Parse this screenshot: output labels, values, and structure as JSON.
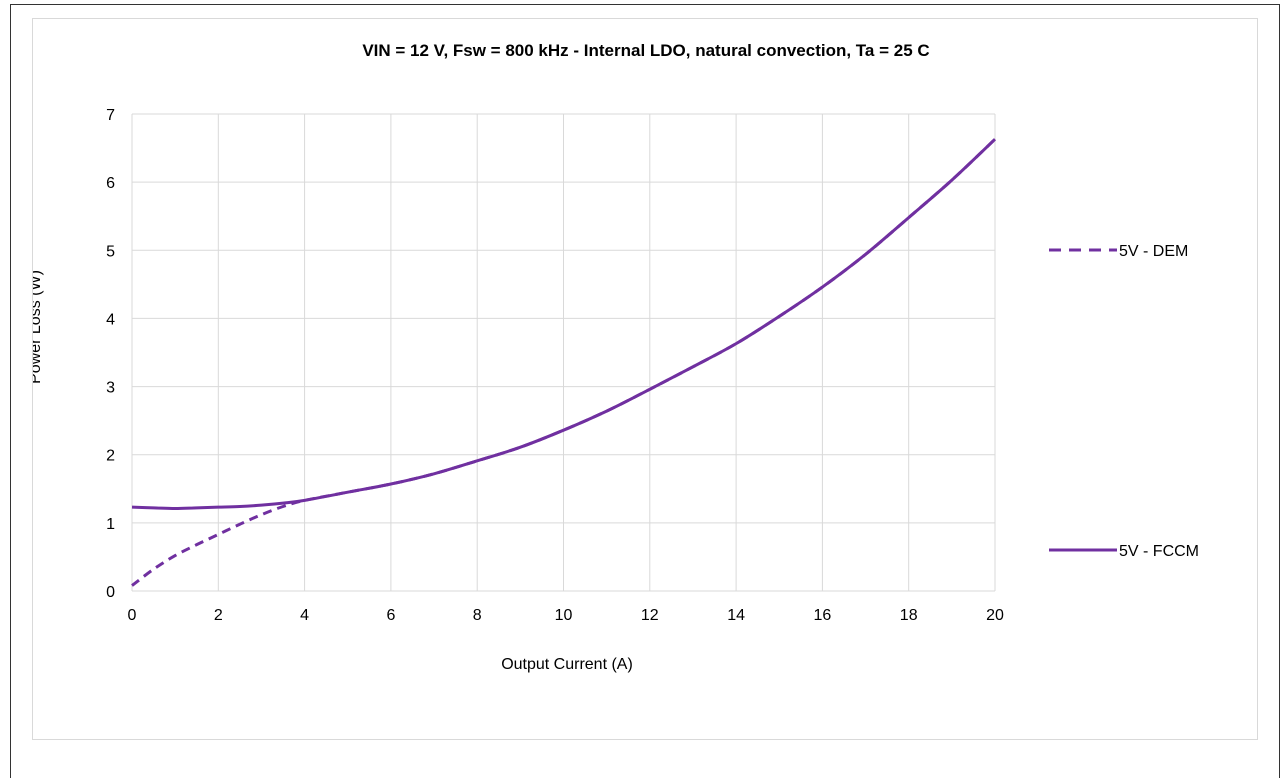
{
  "chart_data": {
    "type": "line",
    "title": "VIN = 12 V, Fsw = 800 kHz - Internal LDO, natural convection, Ta = 25 C",
    "xlabel": "Output Current (A)",
    "ylabel": "Power Loss (W)",
    "xlim": [
      0,
      20
    ],
    "ylim": [
      0,
      7
    ],
    "xticks": [
      0,
      2,
      4,
      6,
      8,
      10,
      12,
      14,
      16,
      18,
      20
    ],
    "yticks": [
      0,
      1,
      2,
      3,
      4,
      5,
      6,
      7
    ],
    "grid": "vertical and horizontal",
    "legend_position": "right",
    "series": [
      {
        "name": "5V - DEM",
        "style": "dashed",
        "color": "#7030a0",
        "x": [
          0,
          0.5,
          1,
          1.5,
          2,
          2.5,
          3,
          3.5,
          4,
          5,
          6,
          7,
          8,
          9,
          10,
          11,
          12,
          13,
          14,
          15,
          16,
          17,
          18,
          19,
          20
        ],
        "y": [
          0.08,
          0.32,
          0.52,
          0.68,
          0.83,
          0.98,
          1.12,
          1.24,
          1.33,
          1.45,
          1.57,
          1.72,
          1.91,
          2.11,
          2.36,
          2.64,
          2.96,
          3.29,
          3.63,
          4.03,
          4.46,
          4.94,
          5.48,
          6.03,
          6.63
        ]
      },
      {
        "name": "5V - FCCM",
        "style": "solid",
        "color": "#7030a0",
        "x": [
          0,
          0.5,
          1,
          1.5,
          2,
          2.5,
          3,
          3.5,
          4,
          5,
          6,
          7,
          8,
          9,
          10,
          11,
          12,
          13,
          14,
          15,
          16,
          17,
          18,
          19,
          20
        ],
        "y": [
          1.23,
          1.22,
          1.21,
          1.22,
          1.23,
          1.24,
          1.26,
          1.29,
          1.33,
          1.45,
          1.57,
          1.72,
          1.91,
          2.11,
          2.36,
          2.64,
          2.96,
          3.29,
          3.63,
          4.03,
          4.46,
          4.94,
          5.48,
          6.03,
          6.63
        ]
      }
    ]
  }
}
